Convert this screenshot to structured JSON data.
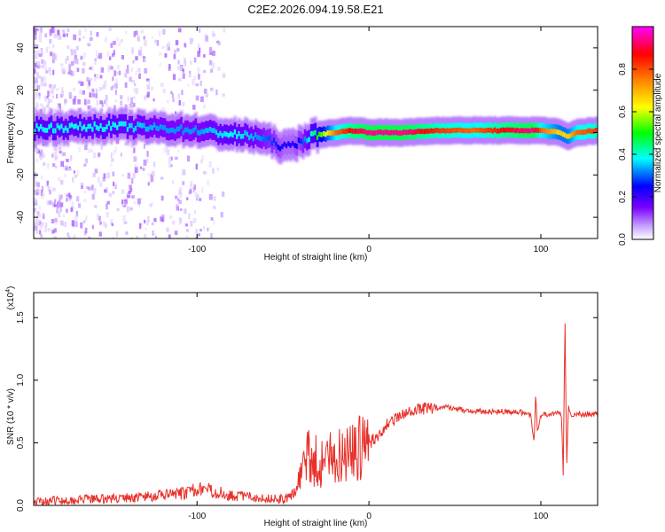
{
  "figure_title": "C2E2.2026.094.19.58.E21",
  "chart_data": [
    {
      "type": "heatmap",
      "title": "C2E2.2026.094.19.58.E21",
      "xlabel": "Height of straight line (km)",
      "ylabel": "Frequency (Hz)",
      "xlim": [
        -195,
        133
      ],
      "ylim": [
        -50,
        50
      ],
      "xticks": [
        -100,
        0,
        100
      ],
      "xtick_labels": [
        "-100",
        "0",
        "100"
      ],
      "yticks": [
        -40,
        -20,
        0,
        20,
        40
      ],
      "ytick_labels": [
        "-40",
        "-20",
        "0",
        "20",
        "40"
      ],
      "colorbar": {
        "label": "Normalized spectral amplitude",
        "range": [
          0,
          1
        ],
        "ticks": [
          0.0,
          0.2,
          0.4,
          0.6,
          0.8
        ],
        "tick_labels": [
          "0.0",
          "0.2",
          "0.4",
          "0.6",
          "0.8"
        ],
        "colormap": [
          "#ffffff",
          "#d9c2ff",
          "#7a00ff",
          "#0000ff",
          "#00ffff",
          "#00ff00",
          "#ffff00",
          "#ff8000",
          "#ff0000",
          "#ff00ff"
        ]
      },
      "ridge": {
        "description": "spectral ridge frequency (Hz) vs height (km)",
        "x": [
          -195,
          -150,
          -120,
          -100,
          -80,
          -65,
          -55,
          -50,
          -45,
          -40,
          -35,
          -30,
          -20,
          -10,
          0,
          20,
          40,
          60,
          80,
          95,
          100,
          110,
          115,
          120,
          133
        ],
        "y": [
          2,
          3,
          2,
          1,
          -1,
          -2,
          -5,
          -7,
          -6,
          -4,
          -2,
          -1,
          0,
          1,
          0,
          0,
          1,
          1,
          1,
          1,
          1,
          0,
          -2,
          0,
          1
        ],
        "peak_amplitude": [
          0.45,
          0.45,
          0.4,
          0.4,
          0.45,
          0.4,
          0.35,
          0.3,
          0.3,
          0.35,
          0.45,
          0.55,
          0.8,
          0.9,
          0.95,
          0.95,
          0.85,
          0.8,
          0.9,
          0.95,
          0.8,
          0.7,
          0.7,
          0.8,
          0.85
        ]
      }
    },
    {
      "type": "line",
      "xlabel": "Height of straight line (km)",
      "ylabel": "SNR (10 * v/v)",
      "y_multiplier_label": "(x10",
      "y_multiplier_exp": "4",
      "y_multiplier_close": ")",
      "xlim": [
        -195,
        133
      ],
      "ylim": [
        0,
        17000
      ],
      "xticks": [
        -100,
        0,
        100
      ],
      "xtick_labels": [
        "-100",
        "0",
        "100"
      ],
      "yticks": [
        0,
        5000,
        10000,
        15000
      ],
      "ytick_labels": [
        "0.0",
        "0.5",
        "1.0",
        "1.5"
      ],
      "series": [
        {
          "name": "SNR",
          "color": "#e8302a",
          "x": [
            -195,
            -180,
            -160,
            -140,
            -120,
            -105,
            -100,
            -95,
            -90,
            -80,
            -70,
            -60,
            -50,
            -45,
            -42,
            -40,
            -38,
            -35,
            -32,
            -30,
            -25,
            -20,
            -15,
            -10,
            -5,
            0,
            5,
            10,
            15,
            20,
            25,
            30,
            35,
            40,
            45,
            50,
            55,
            60,
            70,
            80,
            90,
            94,
            96,
            97,
            98,
            100,
            105,
            110,
            112,
            113,
            114,
            115,
            116,
            118,
            120,
            125,
            133
          ],
          "y": [
            300,
            400,
            500,
            600,
            800,
            1000,
            1400,
            1300,
            1100,
            800,
            700,
            600,
            500,
            700,
            1500,
            2500,
            3500,
            4000,
            3800,
            3200,
            3600,
            3900,
            4300,
            4400,
            4600,
            4900,
            5600,
            6400,
            6900,
            7200,
            7500,
            7700,
            7800,
            7850,
            7900,
            7700,
            7600,
            7550,
            7500,
            7500,
            7400,
            7200,
            5000,
            9000,
            6000,
            7200,
            7300,
            7400,
            7200,
            2500,
            15000,
            3000,
            8000,
            7200,
            7300,
            7250,
            7300
          ]
        }
      ]
    }
  ]
}
